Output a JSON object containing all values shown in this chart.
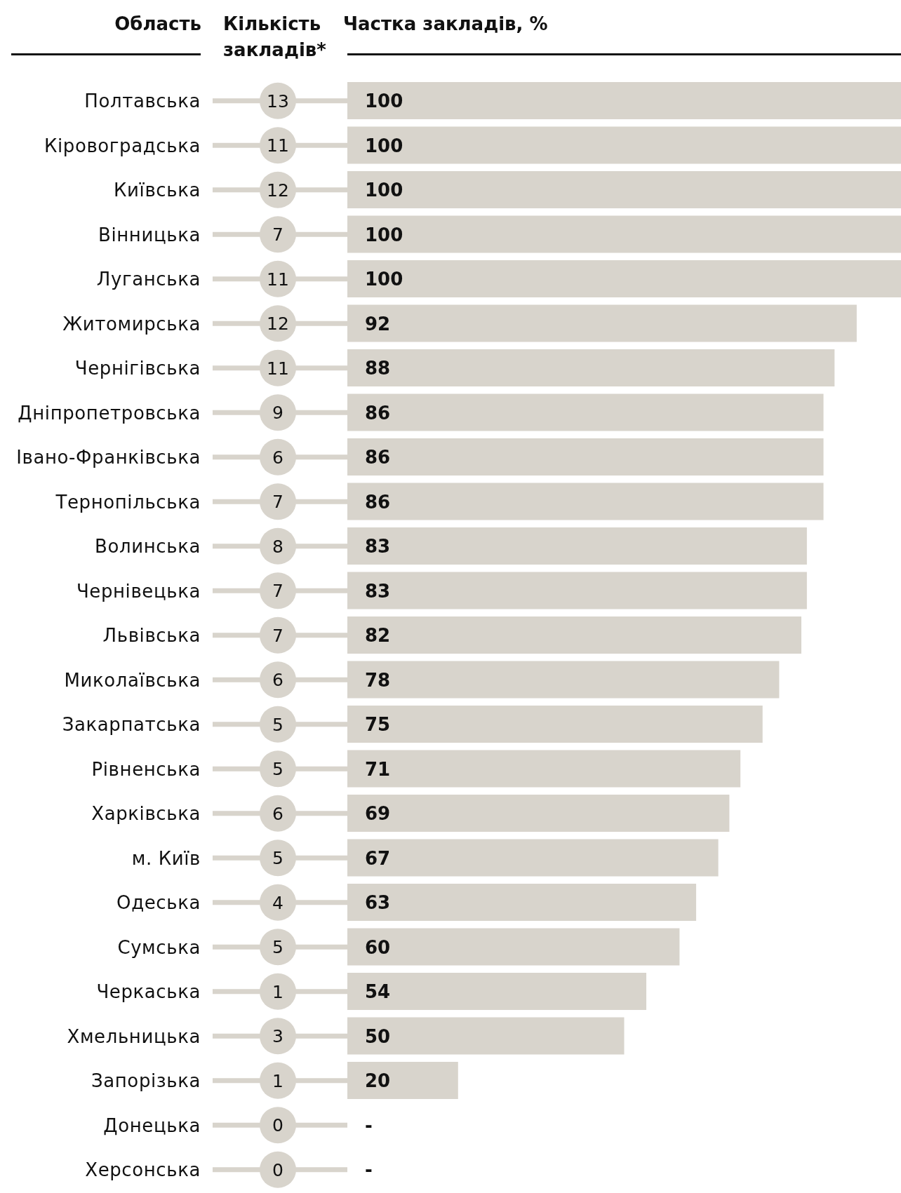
{
  "chart_data": [
    {
      "type": "bar",
      "orientation": "horizontal",
      "ylabel": "Область",
      "title": "Частка закладів, %",
      "tick_labels": "y",
      "xlim": [
        0,
        100
      ],
      "color": "#d8d4cc",
      "categories": [
        "Полтавська",
        "Кіровоградська",
        "Київська",
        "Вінницька",
        "Луганська",
        "Житомирська",
        "Чернігівська",
        "Дніпропетровська",
        "Івано-Франківська",
        "Тернопільська",
        "Волинська",
        "Чернівецька",
        "Львівська",
        "Миколаївська",
        "Закарпатська",
        "Рівненська",
        "Харківська",
        "м. Київ",
        "Одеська",
        "Сумська",
        "Черкаська",
        "Хмельницька",
        "Запорізька",
        "Донецька",
        "Херсонська"
      ],
      "values": [
        100,
        100,
        100,
        100,
        100,
        92,
        88,
        86,
        86,
        86,
        83,
        83,
        82,
        78,
        75,
        71,
        69,
        67,
        63,
        60,
        54,
        50,
        20,
        null,
        null
      ],
      "value_labels": [
        "100",
        "100",
        "100",
        "100",
        "100",
        "92",
        "88",
        "86",
        "86",
        "86",
        "83",
        "83",
        "82",
        "78",
        "75",
        "71",
        "69",
        "67",
        "63",
        "60",
        "54",
        "50",
        "20",
        "-",
        "-"
      ]
    },
    {
      "type": "other",
      "title": "Кількість закладів*",
      "color": "#d8d4cc",
      "value_labels": [
        "13",
        "11",
        "12",
        "7",
        "11",
        "12",
        "11",
        "9",
        "6",
        "7",
        "8",
        "7",
        "7",
        "6",
        "5",
        "5",
        "6",
        "5",
        "4",
        "5",
        "1",
        "3",
        "1",
        "0",
        "0"
      ]
    }
  ]
}
